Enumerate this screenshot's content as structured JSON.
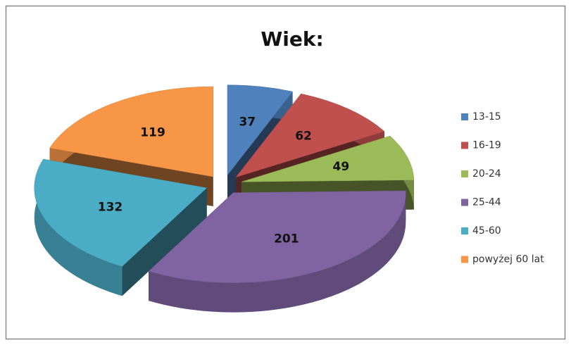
{
  "chart_data": {
    "type": "pie",
    "title": "Wiek:",
    "categories": [
      "13-15",
      "16-19",
      "20-24",
      "25-44",
      "45-60",
      "powyżej 60 lat"
    ],
    "values": [
      37,
      62,
      49,
      201,
      132,
      119
    ],
    "colors": [
      "#4f81bd",
      "#c0504d",
      "#9bbb59",
      "#8064a2",
      "#4bacc6",
      "#f79646"
    ],
    "legend": "right"
  }
}
